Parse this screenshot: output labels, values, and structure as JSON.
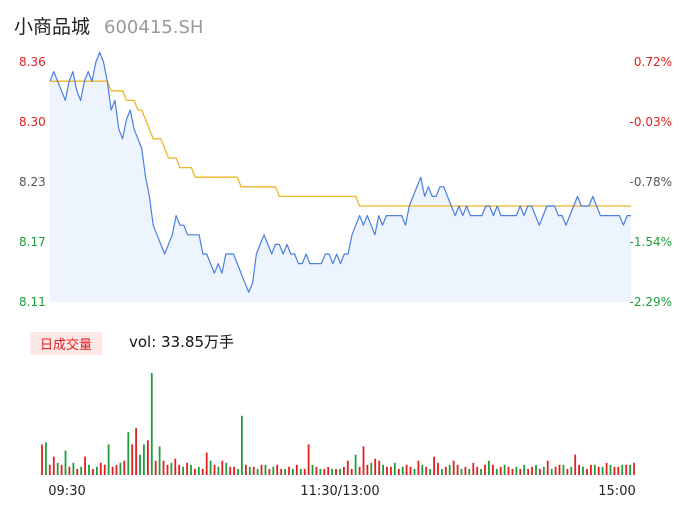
{
  "header": {
    "name": "小商品城",
    "code": "600415.SH"
  },
  "volume_section": {
    "tag": "日成交量",
    "vol_label": "vol: 33.85万手"
  },
  "colors": {
    "price_line": "#4a7fe0",
    "avg_line": "#f0b429",
    "area_fill": "#eef4fd",
    "up": "#e02020",
    "down": "#1f9d3a",
    "tick_text": "#222222"
  },
  "chart_data": [
    {
      "type": "line",
      "title": "",
      "y_left_ticks": [
        "8.36",
        "8.30",
        "8.23",
        "8.17",
        "8.11"
      ],
      "y_right_ticks": [
        "0.72%",
        "-0.03%",
        "-0.78%",
        "-1.54%",
        "-2.29%"
      ],
      "ylim": [
        8.11,
        8.36
      ],
      "series": [
        {
          "role": "price",
          "values": [
            8.34,
            8.35,
            8.34,
            8.33,
            8.32,
            8.34,
            8.35,
            8.33,
            8.32,
            8.34,
            8.35,
            8.34,
            8.36,
            8.37,
            8.36,
            8.34,
            8.31,
            8.32,
            8.29,
            8.28,
            8.3,
            8.31,
            8.29,
            8.28,
            8.27,
            8.24,
            8.22,
            8.19,
            8.18,
            8.17,
            8.16,
            8.17,
            8.18,
            8.2,
            8.19,
            8.19,
            8.18,
            8.18,
            8.18,
            8.18,
            8.16,
            8.16,
            8.15,
            8.14,
            8.15,
            8.14,
            8.16,
            8.16,
            8.16,
            8.15,
            8.14,
            8.13,
            8.12,
            8.13,
            8.16,
            8.17,
            8.18,
            8.17,
            8.16,
            8.17,
            8.17,
            8.16,
            8.17,
            8.16,
            8.16,
            8.15,
            8.15,
            8.16,
            8.15,
            8.15,
            8.15,
            8.15,
            8.16,
            8.16,
            8.15,
            8.16,
            8.15,
            8.16,
            8.16,
            8.18,
            8.19,
            8.2,
            8.19,
            8.2,
            8.19,
            8.18,
            8.2,
            8.19,
            8.2,
            8.2,
            8.2,
            8.2,
            8.2,
            8.19,
            8.21,
            8.22,
            8.23,
            8.24,
            8.22,
            8.23,
            8.22,
            8.22,
            8.23,
            8.23,
            8.22,
            8.21,
            8.2,
            8.21,
            8.2,
            8.21,
            8.2,
            8.2,
            8.2,
            8.2,
            8.21,
            8.21,
            8.2,
            8.21,
            8.2,
            8.2,
            8.2,
            8.2,
            8.2,
            8.21,
            8.2,
            8.21,
            8.21,
            8.2,
            8.19,
            8.2,
            8.21,
            8.21,
            8.21,
            8.2,
            8.2,
            8.19,
            8.2,
            8.21,
            8.22,
            8.21,
            8.21,
            8.21,
            8.22,
            8.21,
            8.2,
            8.2,
            8.2,
            8.2,
            8.2,
            8.2,
            8.19,
            8.2,
            8.2
          ]
        },
        {
          "role": "average",
          "values": [
            8.34,
            8.34,
            8.34,
            8.34,
            8.34,
            8.34,
            8.34,
            8.34,
            8.34,
            8.34,
            8.34,
            8.34,
            8.34,
            8.34,
            8.34,
            8.34,
            8.33,
            8.33,
            8.33,
            8.33,
            8.32,
            8.32,
            8.32,
            8.31,
            8.31,
            8.3,
            8.29,
            8.28,
            8.28,
            8.28,
            8.27,
            8.26,
            8.26,
            8.26,
            8.25,
            8.25,
            8.25,
            8.25,
            8.24,
            8.24,
            8.24,
            8.24,
            8.24,
            8.24,
            8.24,
            8.24,
            8.24,
            8.24,
            8.24,
            8.24,
            8.23,
            8.23,
            8.23,
            8.23,
            8.23,
            8.23,
            8.23,
            8.23,
            8.23,
            8.23,
            8.22,
            8.22,
            8.22,
            8.22,
            8.22,
            8.22,
            8.22,
            8.22,
            8.22,
            8.22,
            8.22,
            8.22,
            8.22,
            8.22,
            8.22,
            8.22,
            8.22,
            8.22,
            8.22,
            8.22,
            8.22,
            8.21,
            8.21,
            8.21,
            8.21,
            8.21,
            8.21,
            8.21,
            8.21,
            8.21,
            8.21,
            8.21,
            8.21,
            8.21,
            8.21,
            8.21,
            8.21,
            8.21,
            8.21,
            8.21,
            8.21,
            8.21,
            8.21,
            8.21,
            8.21,
            8.21,
            8.21,
            8.21,
            8.21,
            8.21,
            8.21,
            8.21,
            8.21,
            8.21,
            8.21,
            8.21,
            8.21,
            8.21,
            8.21,
            8.21,
            8.21,
            8.21,
            8.21,
            8.21,
            8.21,
            8.21,
            8.21,
            8.21,
            8.21,
            8.21,
            8.21,
            8.21,
            8.21,
            8.21,
            8.21,
            8.21,
            8.21,
            8.21,
            8.21,
            8.21,
            8.21,
            8.21,
            8.21,
            8.21,
            8.21,
            8.21,
            8.21,
            8.21,
            8.21,
            8.21,
            8.21,
            8.21,
            8.21
          ]
        }
      ]
    },
    {
      "type": "bar",
      "title": "",
      "x_ticks": [
        "09:30",
        "11:30/13:00",
        "15:00"
      ],
      "values": [
        30,
        32,
        10,
        18,
        12,
        10,
        24,
        8,
        12,
        6,
        8,
        18,
        10,
        6,
        8,
        12,
        10,
        30,
        8,
        10,
        12,
        14,
        42,
        30,
        46,
        20,
        30,
        34,
        100,
        14,
        28,
        14,
        10,
        12,
        16,
        10,
        8,
        12,
        10,
        6,
        8,
        6,
        22,
        14,
        10,
        8,
        14,
        12,
        8,
        8,
        6,
        58,
        10,
        8,
        8,
        6,
        10,
        10,
        6,
        8,
        10,
        6,
        6,
        8,
        6,
        10,
        6,
        6,
        30,
        10,
        8,
        6,
        6,
        8,
        6,
        6,
        6,
        8,
        14,
        6,
        20,
        8,
        28,
        10,
        12,
        16,
        14,
        10,
        8,
        8,
        12,
        6,
        8,
        10,
        8,
        6,
        14,
        10,
        8,
        6,
        18,
        12,
        6,
        8,
        10,
        14,
        10,
        6,
        8,
        6,
        12,
        8,
        6,
        10,
        14,
        10,
        6,
        8,
        10,
        8,
        6,
        8,
        6,
        10,
        6,
        8,
        10,
        6,
        8,
        14,
        6,
        8,
        10,
        10,
        6,
        8,
        20,
        10,
        8,
        6,
        10,
        10,
        8,
        8,
        12,
        10,
        8,
        8,
        10,
        10,
        10,
        12
      ],
      "directions": [
        "up",
        "down",
        "up",
        "up",
        "down",
        "up",
        "down",
        "up",
        "down",
        "up",
        "down",
        "up",
        "down",
        "up",
        "down",
        "up",
        "up",
        "down",
        "up",
        "up",
        "down",
        "up",
        "down",
        "up",
        "up",
        "down",
        "down",
        "up",
        "down",
        "up",
        "down",
        "up",
        "up",
        "down",
        "up",
        "up",
        "down",
        "up",
        "down",
        "up",
        "down",
        "up",
        "up",
        "down",
        "up",
        "down",
        "up",
        "down",
        "up",
        "up",
        "down",
        "down",
        "up",
        "down",
        "up",
        "down",
        "up",
        "down",
        "up",
        "down",
        "up",
        "up",
        "down",
        "up",
        "down",
        "up",
        "down",
        "up",
        "up",
        "down",
        "up",
        "down",
        "up",
        "up",
        "down",
        "up",
        "down",
        "up",
        "up",
        "up",
        "down",
        "up",
        "up",
        "up",
        "down",
        "up",
        "up",
        "down",
        "up",
        "up",
        "down",
        "up",
        "down",
        "up",
        "up",
        "down",
        "up",
        "down",
        "up",
        "down",
        "up",
        "up",
        "down",
        "up",
        "down",
        "up",
        "up",
        "down",
        "up",
        "down",
        "up",
        "up",
        "down",
        "up",
        "down",
        "up",
        "down",
        "up",
        "down",
        "up",
        "up",
        "down",
        "up",
        "down",
        "up",
        "up",
        "down",
        "up",
        "down",
        "up",
        "down",
        "up",
        "up",
        "down",
        "up",
        "down",
        "up",
        "up",
        "down",
        "up",
        "up",
        "down",
        "up",
        "down",
        "up",
        "down",
        "up",
        "up",
        "down",
        "up",
        "down",
        "up"
      ]
    }
  ]
}
